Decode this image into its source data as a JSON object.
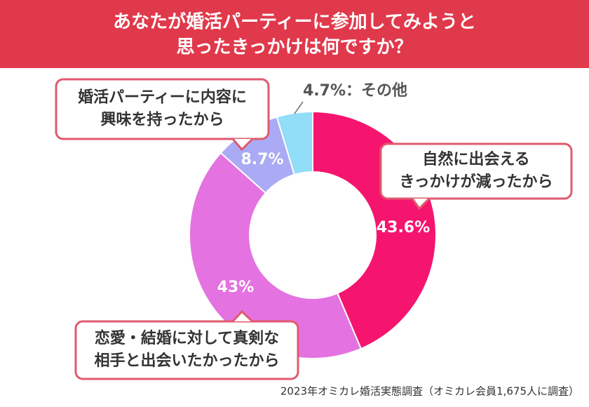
{
  "chart_data": {
    "type": "pie",
    "title": [
      "あなたが婚活パーティーに参加してみようと",
      "思ったきっかけは何ですか？"
    ],
    "categories": [
      [
        "自然に出会える",
        "きっかけが減ったから"
      ],
      [
        "恋愛・結婚に対して真剣な",
        "相手と出会いたかったから"
      ],
      [
        "婚活パーティーに内容に",
        "興味を持ったから"
      ],
      [
        "その他"
      ]
    ],
    "values": [
      43.6,
      43,
      8.7,
      4.7
    ],
    "value_labels": [
      "43.6%",
      "43%",
      "8.7%",
      "4.7%"
    ],
    "colors": [
      "#f5156f",
      "#e472e0",
      "#aaaaf5",
      "#92ddf8"
    ],
    "label_separator": "：",
    "source": "2023年オミカレ婚活実態調査（オミカレ会員1,675人に調査）"
  }
}
